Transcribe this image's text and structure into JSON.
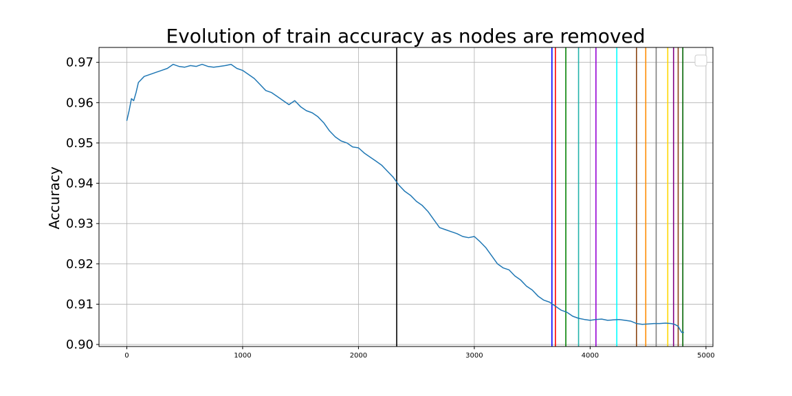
{
  "chart_data": {
    "type": "line",
    "title": "Evolution of train accuracy as nodes are removed",
    "xlabel": "",
    "ylabel": "Accuracy",
    "xlim": [
      -240,
      5060
    ],
    "ylim": [
      0.8995,
      0.9737
    ],
    "x_ticks": [
      0,
      1000,
      2000,
      3000,
      4000,
      5000
    ],
    "x_tick_labels": [
      "0",
      "1000",
      "2000",
      "3000",
      "4000",
      "5000"
    ],
    "y_ticks": [
      0.9,
      0.91,
      0.92,
      0.93,
      0.94,
      0.95,
      0.96,
      0.97
    ],
    "y_tick_labels": [
      "0.90",
      "0.91",
      "0.92",
      "0.93",
      "0.94",
      "0.95",
      "0.96",
      "0.97"
    ],
    "grid": true,
    "legend": {
      "placement": "top-right",
      "entries": []
    },
    "series": [
      {
        "color": "#1f77b4",
        "x": [
          0,
          20,
          40,
          60,
          80,
          100,
          150,
          200,
          250,
          300,
          350,
          400,
          450,
          500,
          550,
          600,
          650,
          700,
          750,
          800,
          850,
          900,
          950,
          1000,
          1050,
          1100,
          1150,
          1200,
          1250,
          1300,
          1350,
          1400,
          1450,
          1500,
          1550,
          1600,
          1650,
          1700,
          1750,
          1800,
          1850,
          1900,
          1950,
          2000,
          2050,
          2100,
          2150,
          2200,
          2250,
          2300,
          2350,
          2400,
          2450,
          2500,
          2550,
          2600,
          2650,
          2700,
          2750,
          2800,
          2850,
          2900,
          2950,
          3000,
          3050,
          3100,
          3150,
          3200,
          3250,
          3300,
          3350,
          3400,
          3450,
          3500,
          3550,
          3600,
          3650,
          3700,
          3750,
          3800,
          3850,
          3900,
          3950,
          4000,
          4050,
          4100,
          4150,
          4200,
          4250,
          4300,
          4350,
          4400,
          4450,
          4500,
          4550,
          4600,
          4650,
          4700,
          4730,
          4760,
          4790,
          4810
        ],
        "y": [
          0.9555,
          0.958,
          0.961,
          0.9605,
          0.9625,
          0.965,
          0.9665,
          0.967,
          0.9675,
          0.968,
          0.9685,
          0.9695,
          0.969,
          0.9688,
          0.9692,
          0.969,
          0.9695,
          0.969,
          0.9688,
          0.969,
          0.9692,
          0.9695,
          0.9685,
          0.968,
          0.967,
          0.966,
          0.9645,
          0.963,
          0.9625,
          0.9615,
          0.9605,
          0.9595,
          0.9605,
          0.959,
          0.958,
          0.9575,
          0.9565,
          0.955,
          0.953,
          0.9515,
          0.9505,
          0.95,
          0.949,
          0.9488,
          0.9475,
          0.9465,
          0.9455,
          0.9445,
          0.943,
          0.9415,
          0.9395,
          0.938,
          0.937,
          0.9355,
          0.9345,
          0.933,
          0.931,
          0.929,
          0.9285,
          0.928,
          0.9275,
          0.9268,
          0.9265,
          0.9268,
          0.9255,
          0.924,
          0.922,
          0.92,
          0.919,
          0.9185,
          0.917,
          0.916,
          0.9145,
          0.9135,
          0.912,
          0.911,
          0.9105,
          0.9095,
          0.9085,
          0.908,
          0.907,
          0.9065,
          0.9062,
          0.906,
          0.9062,
          0.9063,
          0.906,
          0.9061,
          0.9062,
          0.906,
          0.9058,
          0.9052,
          0.905,
          0.9051,
          0.9052,
          0.9052,
          0.9053,
          0.9052,
          0.905,
          0.9045,
          0.903,
          0.903
        ]
      }
    ],
    "vlines": [
      {
        "x": 2330,
        "color": "#000000"
      },
      {
        "x": 3670,
        "color": "#0000ff"
      },
      {
        "x": 3700,
        "color": "#ff0000"
      },
      {
        "x": 3790,
        "color": "#008000"
      },
      {
        "x": 3900,
        "color": "#20b2aa"
      },
      {
        "x": 4050,
        "color": "#9400d3"
      },
      {
        "x": 4230,
        "color": "#00ffff"
      },
      {
        "x": 4400,
        "color": "#8b4513"
      },
      {
        "x": 4480,
        "color": "#ff8c00"
      },
      {
        "x": 4570,
        "color": "#808080"
      },
      {
        "x": 4670,
        "color": "#ffd700"
      },
      {
        "x": 4720,
        "color": "#800080"
      },
      {
        "x": 4760,
        "color": "#8b4513"
      },
      {
        "x": 4800,
        "color": "#006400"
      }
    ]
  }
}
